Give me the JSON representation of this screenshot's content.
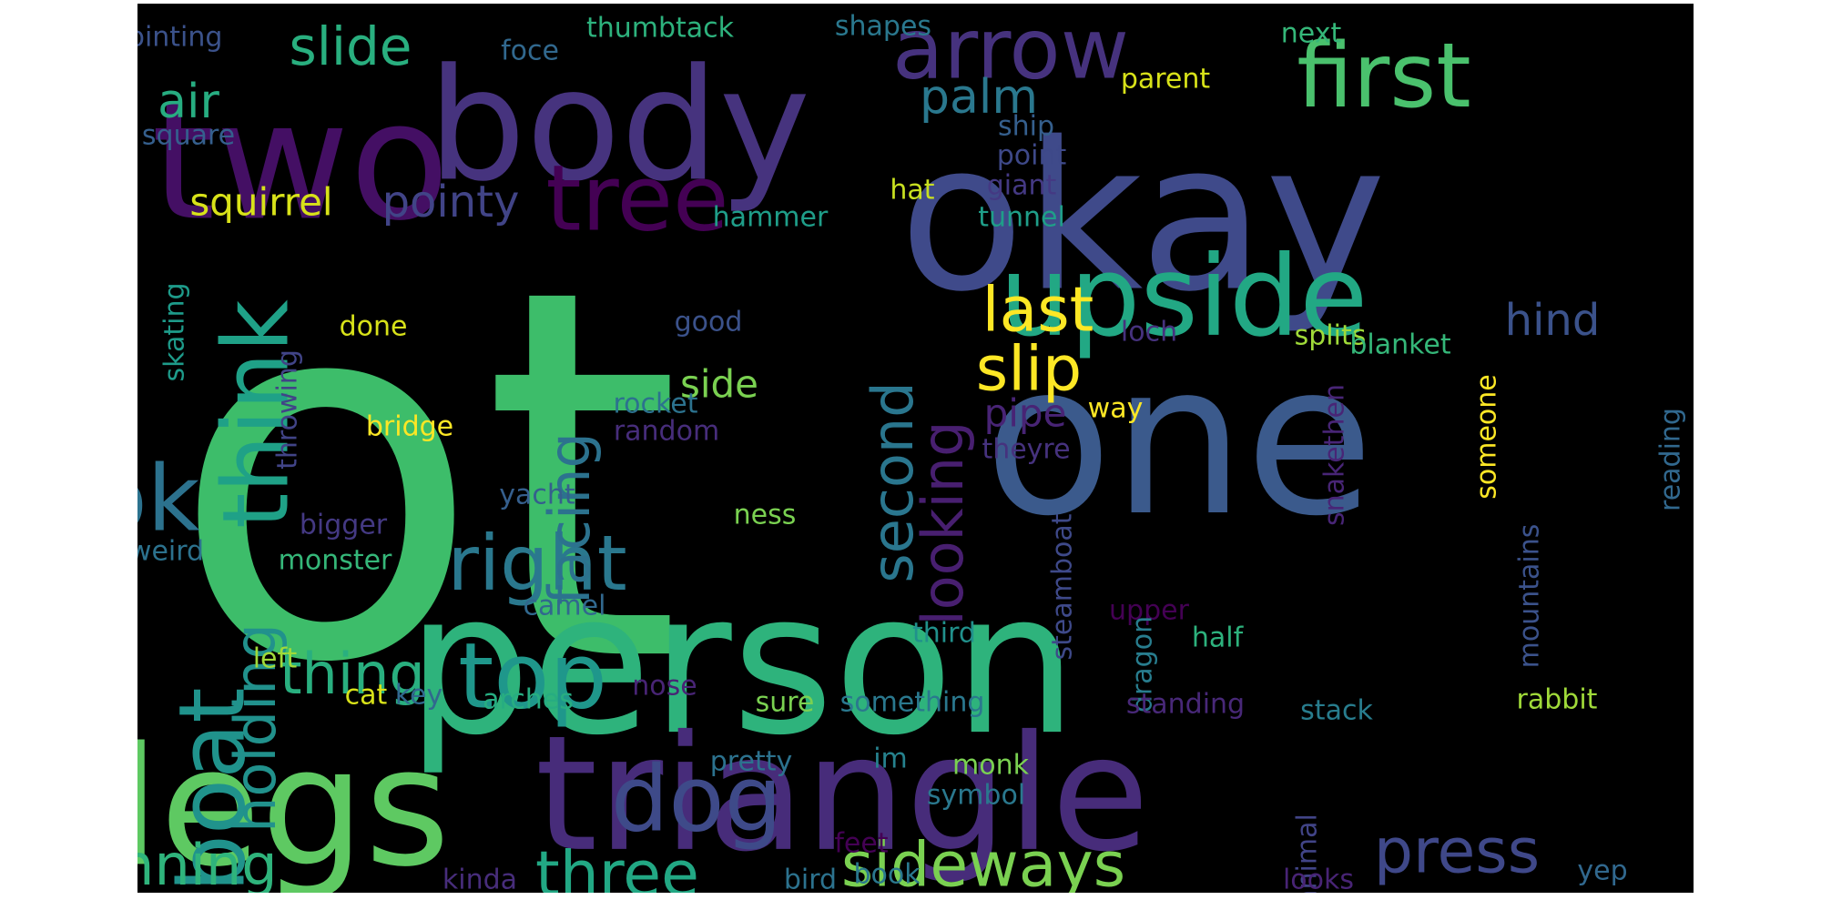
{
  "colors": {
    "page_background": "#ffffff",
    "panel_background": "#000000",
    "palette": [
      "#440154",
      "#482878",
      "#3e4989",
      "#31688e",
      "#26828e",
      "#1f9e89",
      "#35b779",
      "#6ece58",
      "#b5de2b",
      "#fde725"
    ]
  },
  "words": [
    {
      "text": "got",
      "color": "#3dbd6a"
    },
    {
      "text": "okay",
      "color": "#3f4a8a"
    },
    {
      "text": "person",
      "color": "#2eb37c"
    },
    {
      "text": "one",
      "color": "#3b5a8c"
    },
    {
      "text": "two",
      "color": "#440f64"
    },
    {
      "text": "body",
      "color": "#46337e"
    },
    {
      "text": "triangle",
      "color": "#472c7a"
    },
    {
      "text": "legs",
      "color": "#5ec962"
    },
    {
      "text": "arrow",
      "color": "#46327e"
    },
    {
      "text": "first",
      "color": "#4ac16d"
    },
    {
      "text": "upside",
      "color": "#22a884"
    },
    {
      "text": "tree",
      "color": "#440154"
    },
    {
      "text": "think",
      "color": "#1fa187"
    },
    {
      "text": "ok",
      "color": "#2c728e"
    },
    {
      "text": "top",
      "color": "#1f978b"
    },
    {
      "text": "right",
      "color": "#2a788e"
    },
    {
      "text": "dog",
      "color": "#3e4a89"
    },
    {
      "text": "boat",
      "color": "#20938c"
    },
    {
      "text": "last",
      "color": "#fde725"
    },
    {
      "text": "slip",
      "color": "#fde725"
    },
    {
      "text": "press",
      "color": "#3f4889"
    },
    {
      "text": "sideways",
      "color": "#7ad151"
    },
    {
      "text": "running",
      "color": "#2fb47c"
    },
    {
      "text": "three",
      "color": "#22a884"
    },
    {
      "text": "thing",
      "color": "#29af7f"
    },
    {
      "text": "facing",
      "color": "#2c728e"
    },
    {
      "text": "second",
      "color": "#2a768e"
    },
    {
      "text": "looking",
      "color": "#481f70"
    },
    {
      "text": "holding",
      "color": "#21918c"
    },
    {
      "text": "slide",
      "color": "#29af7f"
    },
    {
      "text": "palm",
      "color": "#2a788e"
    },
    {
      "text": "air",
      "color": "#27ad81"
    },
    {
      "text": "hind",
      "color": "#3b528b"
    },
    {
      "text": "pointy",
      "color": "#414487"
    },
    {
      "text": "squirrel",
      "color": "#d8e219"
    },
    {
      "text": "side",
      "color": "#7ad151"
    },
    {
      "text": "pipe",
      "color": "#482475"
    },
    {
      "text": "pointing",
      "color": "#3b528b"
    },
    {
      "text": "thumbtack",
      "color": "#2db27d"
    },
    {
      "text": "shapes",
      "color": "#2a788e"
    },
    {
      "text": "next",
      "color": "#35b779"
    },
    {
      "text": "foce",
      "color": "#31688e"
    },
    {
      "text": "parent",
      "color": "#d8e219"
    },
    {
      "text": "square",
      "color": "#355f8d"
    },
    {
      "text": "ship",
      "color": "#355f8d"
    },
    {
      "text": "point",
      "color": "#3e4989"
    },
    {
      "text": "giant",
      "color": "#443983"
    },
    {
      "text": "hat",
      "color": "#c8e020"
    },
    {
      "text": "hammer",
      "color": "#1f9e89"
    },
    {
      "text": "tunnel",
      "color": "#1f9e89"
    },
    {
      "text": "skating",
      "color": "#1e9b8a"
    },
    {
      "text": "done",
      "color": "#d8e219"
    },
    {
      "text": "good",
      "color": "#3b528b"
    },
    {
      "text": "loch",
      "color": "#46327e"
    },
    {
      "text": "splits",
      "color": "#a0da39"
    },
    {
      "text": "blanket",
      "color": "#35b779"
    },
    {
      "text": "throwing",
      "color": "#414487"
    },
    {
      "text": "rocket",
      "color": "#2c728e"
    },
    {
      "text": "random",
      "color": "#472d7b"
    },
    {
      "text": "bridge",
      "color": "#fde725"
    },
    {
      "text": "way",
      "color": "#fde725"
    },
    {
      "text": "theyre",
      "color": "#46327e"
    },
    {
      "text": "snakethen",
      "color": "#482576"
    },
    {
      "text": "someone",
      "color": "#fde725"
    },
    {
      "text": "reading",
      "color": "#31688e"
    },
    {
      "text": "yacht",
      "color": "#355f8d"
    },
    {
      "text": "ness",
      "color": "#7ad151"
    },
    {
      "text": "bigger",
      "color": "#443983"
    },
    {
      "text": "weird",
      "color": "#2c728e"
    },
    {
      "text": "monster",
      "color": "#35b779"
    },
    {
      "text": "steamboat",
      "color": "#3e4989"
    },
    {
      "text": "mountains",
      "color": "#3b528b"
    },
    {
      "text": "camel",
      "color": "#31688e"
    },
    {
      "text": "upper",
      "color": "#440154"
    },
    {
      "text": "third",
      "color": "#21918c"
    },
    {
      "text": "half",
      "color": "#2db27d"
    },
    {
      "text": "left",
      "color": "#a0da39"
    },
    {
      "text": "dragon",
      "color": "#287d8e"
    },
    {
      "text": "cat",
      "color": "#d8e219"
    },
    {
      "text": "key",
      "color": "#31688e"
    },
    {
      "text": "arches",
      "color": "#27ad81"
    },
    {
      "text": "nose",
      "color": "#482475"
    },
    {
      "text": "sure",
      "color": "#7ad151"
    },
    {
      "text": "something",
      "color": "#2a788e"
    },
    {
      "text": "standing",
      "color": "#482878"
    },
    {
      "text": "stack",
      "color": "#287d8e"
    },
    {
      "text": "rabbit",
      "color": "#a0da39"
    },
    {
      "text": "pretty",
      "color": "#2c728e"
    },
    {
      "text": "im",
      "color": "#26828e"
    },
    {
      "text": "monk",
      "color": "#7ad151"
    },
    {
      "text": "symbol",
      "color": "#2a788e"
    },
    {
      "text": "animal",
      "color": "#414487"
    },
    {
      "text": "feet",
      "color": "#440154"
    },
    {
      "text": "kinda",
      "color": "#472d7b"
    },
    {
      "text": "bird",
      "color": "#2c728e"
    },
    {
      "text": "book",
      "color": "#2a788e"
    },
    {
      "text": "looks",
      "color": "#482475"
    },
    {
      "text": "yep",
      "color": "#31688e"
    }
  ]
}
